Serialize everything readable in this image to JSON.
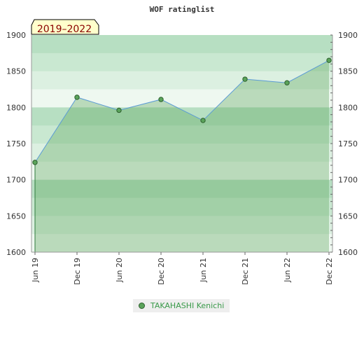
{
  "chart_data": {
    "type": "area",
    "title": "WOF ratinglist",
    "badge": "2019–2022",
    "x": [
      "Jun 19",
      "Dec 19",
      "Jun 20",
      "Dec 20",
      "Jun 21",
      "Dec 21",
      "Jun 22",
      "Dec 22"
    ],
    "series": [
      {
        "name": "TAKAHASHI Kenichi",
        "values": [
          1724,
          1814,
          1796,
          1811,
          1782,
          1839,
          1834,
          1865
        ]
      }
    ],
    "ylim": [
      1600,
      1900
    ],
    "yticks": [
      1600,
      1650,
      1700,
      1750,
      1800,
      1850,
      1900
    ],
    "grid": true,
    "legend_position": "bottom",
    "colors": {
      "line": "#5b9bd5",
      "area_fill": "#5aa35a",
      "marker_fill": "#5aa35a",
      "marker_stroke": "#2d5f2d",
      "badge_fill": "#ffffcc",
      "badge_text": "#8b0000",
      "legend_text": "#3a9a4a",
      "band_colors": [
        "#b7dfc2",
        "#c9e8d1",
        "#dcf0e1",
        "#eef8f0",
        "#b7dfc2",
        "#c9e8d1",
        "#dcf0e1",
        "#eef8f0",
        "#b7dfc2",
        "#c9e8d1",
        "#dcf0e1",
        "#eef8f0"
      ]
    }
  }
}
